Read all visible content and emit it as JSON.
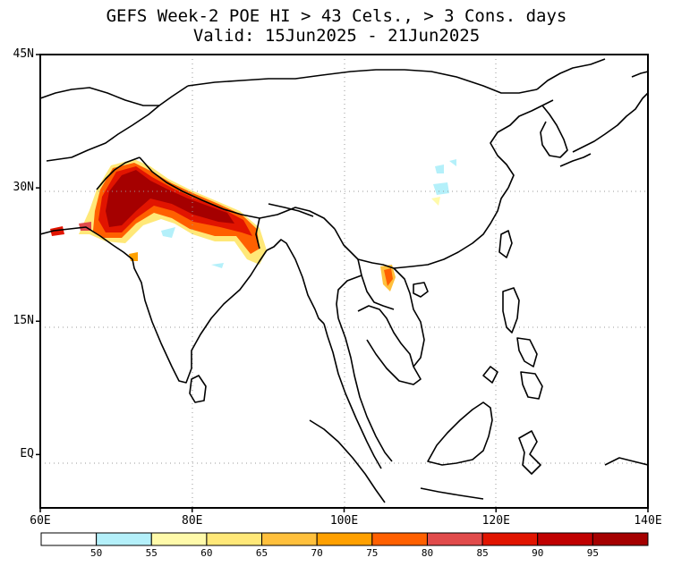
{
  "title": {
    "line1": "GEFS Week-2 POE HI > 43 Cels., > 3 Cons. days",
    "line2": "Valid: 15Jun2025 - 21Jun2025"
  },
  "map": {
    "lon_range": [
      60,
      140
    ],
    "lat_range": [
      -6,
      45
    ],
    "y_ticks": [
      {
        "label": "45N",
        "lat": 45
      },
      {
        "label": "30N",
        "lat": 30
      },
      {
        "label": "15N",
        "lat": 15
      },
      {
        "label": "EQ",
        "lat": 0
      }
    ],
    "x_ticks": [
      {
        "label": "60E",
        "lon": 60
      },
      {
        "label": "80E",
        "lon": 80
      },
      {
        "label": "100E",
        "lon": 100
      },
      {
        "label": "120E",
        "lon": 120
      },
      {
        "label": "140E",
        "lon": 140
      }
    ],
    "gridlines": "dotted"
  },
  "colorbar": {
    "labels": [
      "50",
      "55",
      "60",
      "65",
      "70",
      "75",
      "80",
      "85",
      "90",
      "95"
    ],
    "colors": [
      "#ffffff",
      "#b4f0fa",
      "#fffaaa",
      "#ffe878",
      "#ffc03c",
      "#ffa000",
      "#ff6000",
      "#e14b4b",
      "#e11400",
      "#c00000",
      "#a50000"
    ]
  }
}
